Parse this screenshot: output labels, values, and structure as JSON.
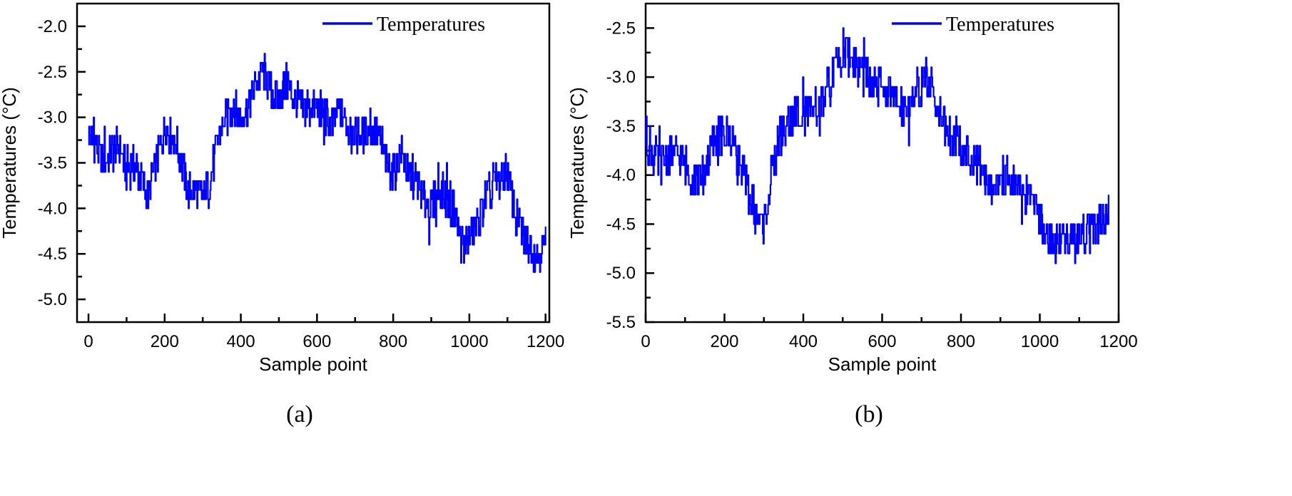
{
  "chart_data": [
    {
      "type": "line",
      "panel_label": "(a)",
      "title": "",
      "xlabel": "Sample point",
      "ylabel": "Temperatures (°C)",
      "xlim": [
        -30,
        1210
      ],
      "ylim": [
        -5.25,
        -1.75
      ],
      "xticks": [
        0,
        200,
        400,
        600,
        800,
        1000,
        1200
      ],
      "xtick_labels": [
        "0",
        "200",
        "400",
        "600",
        "800",
        "1000",
        "1200"
      ],
      "yticks": [
        -2.0,
        -2.5,
        -3.0,
        -3.5,
        -4.0,
        -4.5,
        -5.0
      ],
      "ytick_labels": [
        "-2.0",
        "-2.5",
        "-3.0",
        "-3.5",
        "-4.0",
        "-4.5",
        "-5.0"
      ],
      "legend": "top-right",
      "color": "#0000FF",
      "series": [
        {
          "name": "Temperatures",
          "x": [
            0,
            20,
            40,
            60,
            80,
            100,
            120,
            140,
            155,
            170,
            190,
            200,
            215,
            230,
            245,
            260,
            280,
            300,
            320,
            340,
            360,
            380,
            400,
            420,
            440,
            460,
            480,
            500,
            520,
            540,
            560,
            580,
            600,
            620,
            640,
            660,
            680,
            700,
            720,
            740,
            760,
            780,
            800,
            820,
            840,
            860,
            880,
            900,
            920,
            940,
            960,
            980,
            1000,
            1020,
            1040,
            1060,
            1080,
            1100,
            1120,
            1140,
            1160,
            1180,
            1200
          ],
          "values": [
            -3.2,
            -3.3,
            -3.5,
            -3.4,
            -3.3,
            -3.6,
            -3.5,
            -3.7,
            -3.9,
            -3.6,
            -3.3,
            -3.1,
            -3.2,
            -3.3,
            -3.5,
            -3.8,
            -3.8,
            -3.9,
            -3.7,
            -3.2,
            -3.0,
            -2.9,
            -3.0,
            -2.9,
            -2.6,
            -2.5,
            -2.7,
            -2.8,
            -2.6,
            -2.8,
            -2.9,
            -2.9,
            -2.9,
            -3.0,
            -3.1,
            -2.9,
            -3.1,
            -3.2,
            -3.2,
            -3.1,
            -3.2,
            -3.5,
            -3.6,
            -3.4,
            -3.6,
            -3.7,
            -3.9,
            -4.0,
            -3.8,
            -3.9,
            -4.0,
            -4.4,
            -4.3,
            -4.2,
            -3.9,
            -3.8,
            -3.7,
            -3.6,
            -4.1,
            -4.3,
            -4.4,
            -4.5,
            -4.4
          ]
        }
      ]
    },
    {
      "type": "line",
      "panel_label": "(b)",
      "title": "",
      "xlabel": "Sample point",
      "ylabel": "Temperatures (°C)",
      "xlim": [
        0,
        1200
      ],
      "ylim": [
        -5.5,
        -2.25
      ],
      "xticks": [
        0,
        200,
        400,
        600,
        800,
        1000,
        1200
      ],
      "xtick_labels": [
        "0",
        "200",
        "400",
        "600",
        "800",
        "1000",
        "1200"
      ],
      "yticks": [
        -2.5,
        -3.0,
        -3.5,
        -4.0,
        -4.5,
        -5.0,
        -5.5
      ],
      "ytick_labels": [
        "-2.5",
        "-3.0",
        "-3.5",
        "-4.0",
        "-4.5",
        "-5.0",
        "-5.5"
      ],
      "legend": "top-right",
      "color": "#0000FF",
      "series": [
        {
          "name": "Temperatures",
          "x": [
            0,
            20,
            40,
            60,
            80,
            100,
            120,
            140,
            160,
            180,
            200,
            220,
            240,
            260,
            280,
            300,
            320,
            340,
            360,
            380,
            400,
            420,
            440,
            460,
            480,
            500,
            520,
            540,
            560,
            580,
            600,
            620,
            640,
            660,
            680,
            700,
            720,
            740,
            760,
            780,
            800,
            820,
            840,
            860,
            880,
            900,
            920,
            940,
            960,
            980,
            1000,
            1020,
            1040,
            1060,
            1080,
            1100,
            1120,
            1140,
            1160,
            1175
          ],
          "values": [
            -3.6,
            -3.8,
            -3.9,
            -3.8,
            -3.8,
            -3.9,
            -4.0,
            -4.1,
            -3.8,
            -3.6,
            -3.6,
            -3.6,
            -3.9,
            -4.2,
            -4.4,
            -4.5,
            -4.0,
            -3.6,
            -3.5,
            -3.4,
            -3.3,
            -3.4,
            -3.3,
            -3.2,
            -2.9,
            -2.7,
            -2.8,
            -2.9,
            -3.0,
            -3.1,
            -3.1,
            -3.2,
            -3.3,
            -3.3,
            -3.2,
            -3.1,
            -3.0,
            -3.3,
            -3.5,
            -3.6,
            -3.7,
            -3.8,
            -3.9,
            -4.0,
            -4.1,
            -4.0,
            -4.0,
            -4.1,
            -4.2,
            -4.3,
            -4.4,
            -4.6,
            -4.7,
            -4.6,
            -4.7,
            -4.6,
            -4.6,
            -4.5,
            -4.5,
            -4.4
          ]
        }
      ]
    }
  ]
}
